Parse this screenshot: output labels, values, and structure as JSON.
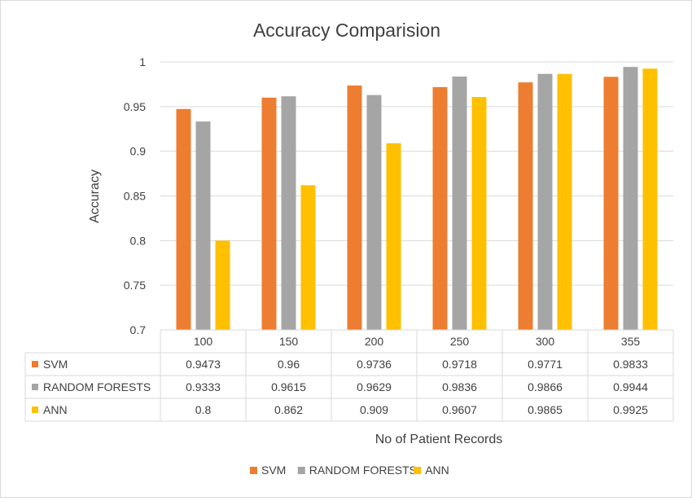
{
  "chart_data": {
    "type": "bar",
    "title": "Accuracy Comparision",
    "xlabel": "No of Patient Records",
    "ylabel": "Accuracy",
    "ylim": [
      0.7,
      1
    ],
    "yticks": [
      "0.7",
      "0.75",
      "0.8",
      "0.85",
      "0.9",
      "0.95",
      "1"
    ],
    "categories": [
      "100",
      "150",
      "200",
      "250",
      "300",
      "355"
    ],
    "grid": true,
    "legend_position": "bottom",
    "data_table": true,
    "series": [
      {
        "name": "SVM",
        "color": "#ED7D31",
        "values": [
          0.9473,
          0.96,
          0.9736,
          0.9718,
          0.9771,
          0.9833
        ],
        "labels": [
          "0.9473",
          "0.96",
          "0.9736",
          "0.9718",
          "0.9771",
          "0.9833"
        ]
      },
      {
        "name": "RANDOM FORESTS",
        "color": "#A5A5A5",
        "values": [
          0.9333,
          0.9615,
          0.9629,
          0.9836,
          0.9866,
          0.9944
        ],
        "labels": [
          "0.9333",
          "0.9615",
          "0.9629",
          "0.9836",
          "0.9866",
          "0.9944"
        ]
      },
      {
        "name": "ANN",
        "color": "#FFC000",
        "values": [
          0.8,
          0.862,
          0.909,
          0.9607,
          0.9865,
          0.9925
        ],
        "labels": [
          "0.8",
          "0.862",
          "0.909",
          "0.9607",
          "0.9865",
          "0.9925"
        ]
      }
    ]
  }
}
